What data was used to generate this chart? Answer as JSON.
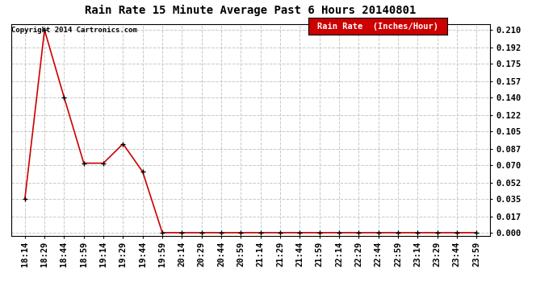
{
  "title": "Rain Rate 15 Minute Average Past 6 Hours 20140801",
  "copyright": "Copyright 2014 Cartronics.com",
  "legend_label": "Rain Rate  (Inches/Hour)",
  "line_color": "#cc0000",
  "marker_color": "#000000",
  "background_color": "#ffffff",
  "grid_color": "#c8c8c8",
  "legend_bg": "#cc0000",
  "legend_text_color": "#ffffff",
  "ylim": [
    -0.003,
    0.216
  ],
  "yticks": [
    0.0,
    0.017,
    0.035,
    0.052,
    0.07,
    0.087,
    0.105,
    0.122,
    0.14,
    0.157,
    0.175,
    0.192,
    0.21
  ],
  "x_labels": [
    "18:14",
    "18:29",
    "18:44",
    "18:59",
    "19:14",
    "19:29",
    "19:44",
    "19:59",
    "20:14",
    "20:29",
    "20:44",
    "20:59",
    "21:14",
    "21:29",
    "21:44",
    "21:59",
    "22:14",
    "22:29",
    "22:44",
    "22:59",
    "23:14",
    "23:29",
    "23:44",
    "23:59"
  ],
  "y_values": [
    0.035,
    0.21,
    0.14,
    0.072,
    0.072,
    0.092,
    0.063,
    0.0,
    0.0,
    0.0,
    0.0,
    0.0,
    0.0,
    0.0,
    0.0,
    0.0,
    0.0,
    0.0,
    0.0,
    0.0,
    0.0,
    0.0,
    0.0,
    0.0
  ],
  "title_fontsize": 10,
  "tick_fontsize": 7.5,
  "copyright_fontsize": 6.5,
  "legend_fontsize": 7.5
}
